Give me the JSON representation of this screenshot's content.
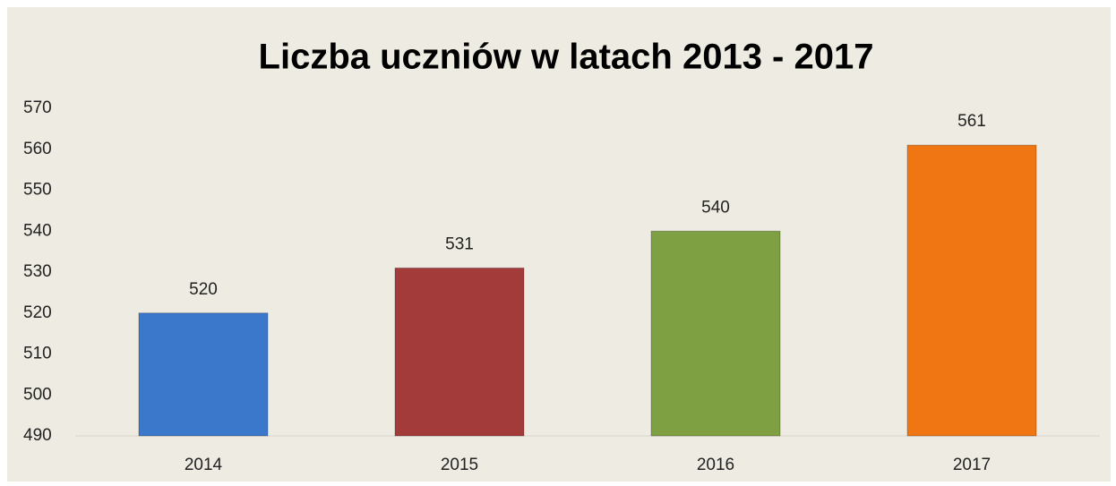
{
  "chart_data": {
    "type": "bar",
    "title": "Liczba uczniów w latach 2013 - 2017",
    "categories": [
      "2014",
      "2015",
      "2016",
      "2017"
    ],
    "values": [
      520,
      531,
      540,
      561
    ],
    "colors": [
      "#3b78cc",
      "#a23b3a",
      "#7f9f43",
      "#f07614"
    ],
    "ylim": [
      490,
      570
    ],
    "yticks": [
      490,
      500,
      510,
      520,
      530,
      540,
      550,
      560,
      570
    ],
    "grid": false
  }
}
